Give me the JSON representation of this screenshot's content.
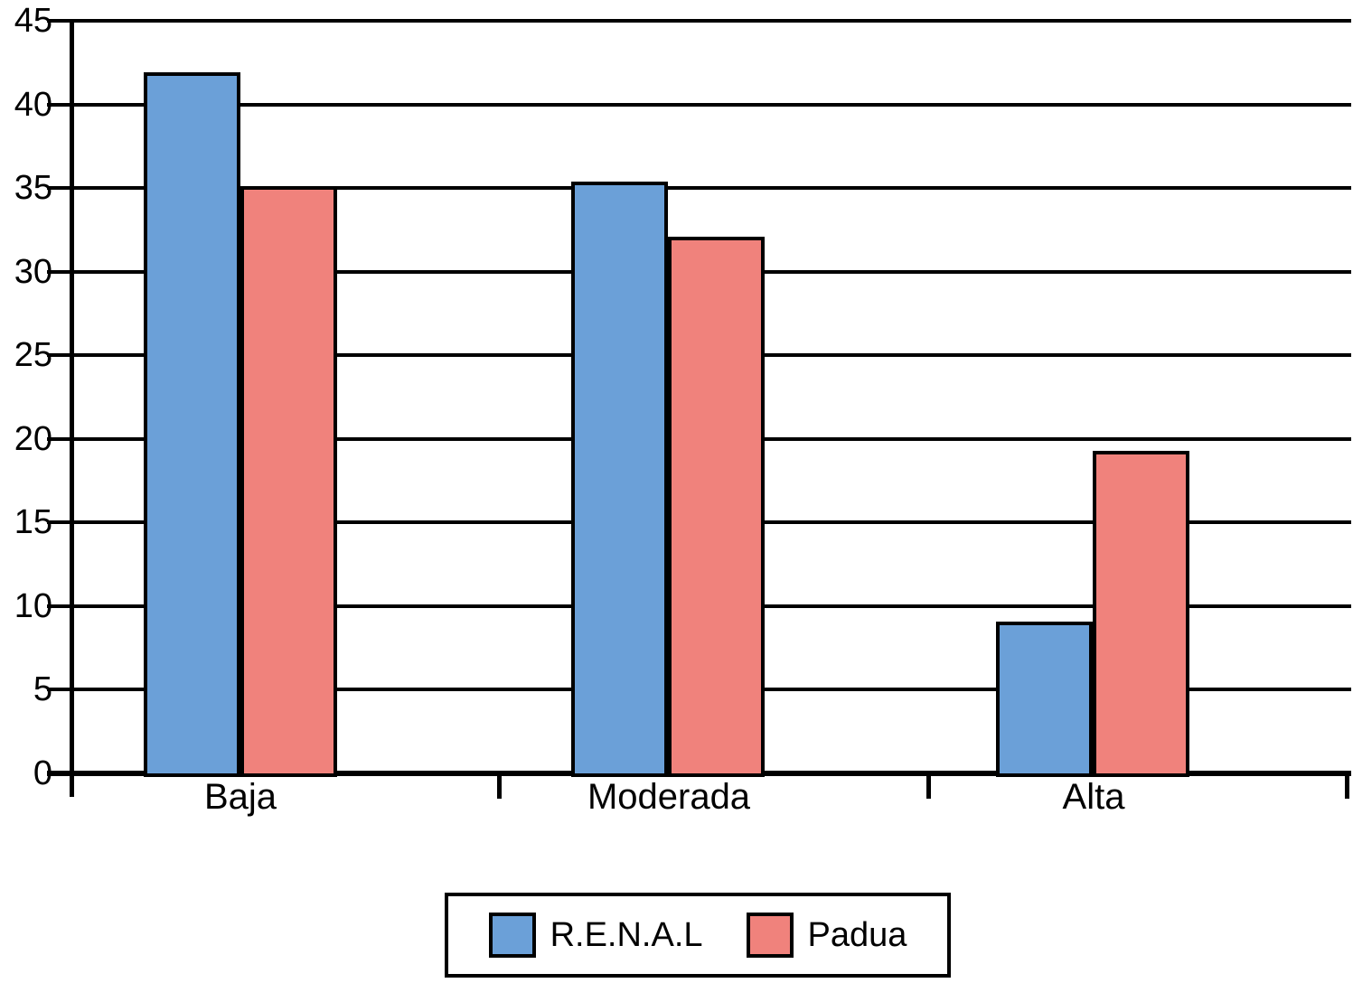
{
  "chart_data": {
    "type": "bar",
    "categories": [
      "Baja",
      "Moderada",
      "Alta"
    ],
    "series": [
      {
        "name": "R.E.N.A.L",
        "color": "#6BA0D8",
        "values": [
          41.9,
          35.4,
          9.1
        ]
      },
      {
        "name": "Padua",
        "color": "#F0827C",
        "values": [
          35.1,
          32.1,
          19.3
        ]
      }
    ],
    "title": "",
    "xlabel": "",
    "ylabel": "",
    "ylim": [
      0,
      45
    ],
    "yticks": [
      0,
      5,
      10,
      15,
      20,
      25,
      30,
      35,
      40,
      45
    ],
    "grid": true,
    "gridline_color": "#000000",
    "bar_border_color": "#000000",
    "legend_position": "bottom-center"
  }
}
